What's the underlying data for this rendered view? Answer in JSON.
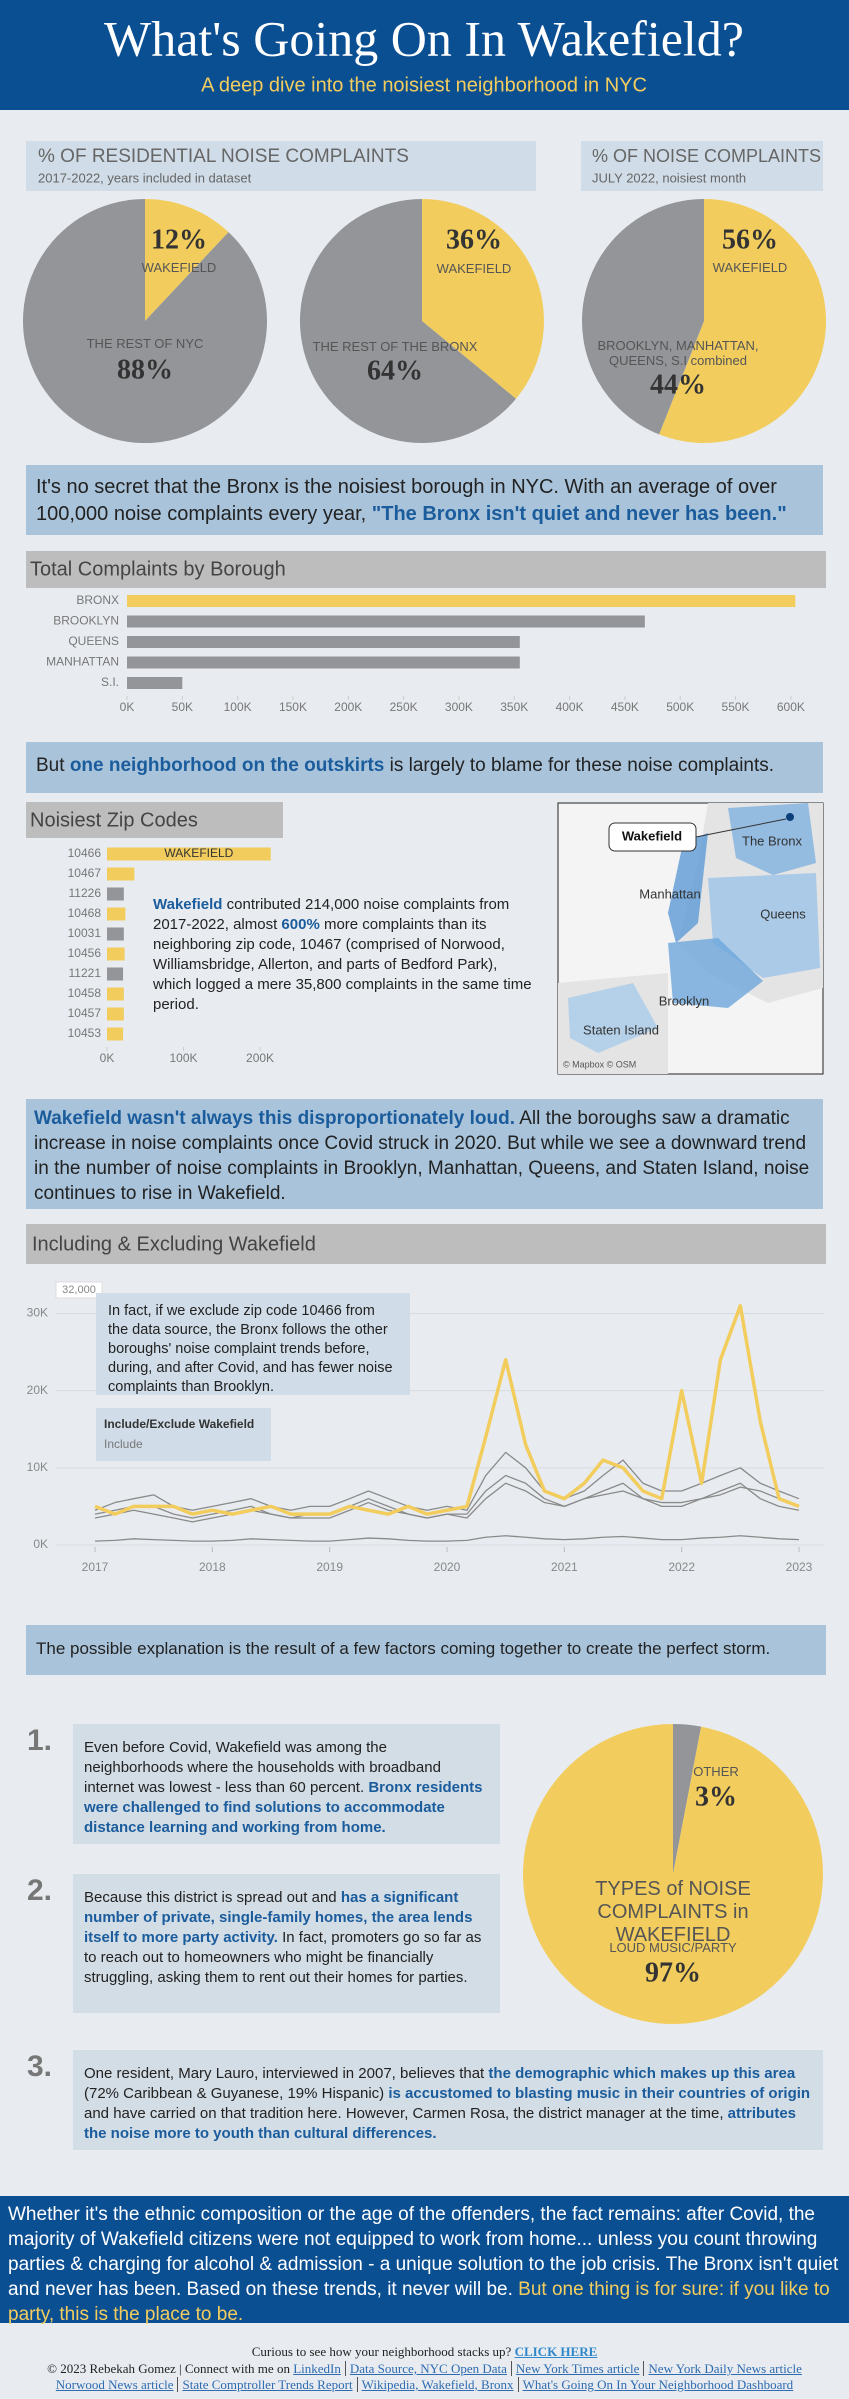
{
  "header": {
    "title": "What's Going On In Wakefield?",
    "subtitle": "A deep dive into the noisiest neighborhood in NYC"
  },
  "pie_headers": [
    {
      "title": "% OF RESIDENTIAL NOISE COMPLAINTS",
      "note": "2017-2022, years included in dataset"
    },
    {
      "title": "% OF NOISE COMPLAINTS",
      "note": "JULY 2022, noisiest month"
    }
  ],
  "intro": [
    "It's no secret that the Bronx is the noisiest borough in NYC. With an average of over 100,000 noise complaints every year, ",
    "\"The Bronx isn't quiet and never has been.\""
  ],
  "outskirts": [
    "But ",
    "one neighborhood on the outskirts",
    " is largely to blame for these noise complaints."
  ],
  "zip_text": [
    "Wakefield",
    " contributed 214,000 noise complaints from 2017-2022, almost ",
    "600%",
    " more complaints than its neighboring zip code, 10467 (comprised of Norwood, Williamsbridge, Allerton, and parts of Bedford Park), which logged a mere 35,800 complaints in the same time period."
  ],
  "map": {
    "labels": [
      "Wakefield",
      "The Bronx",
      "Manhattan",
      "Queens",
      "Brooklyn",
      "Staten Island"
    ],
    "credit": "© Mapbox © OSM"
  },
  "covid": [
    "Wakefield wasn't always this disproportionately loud.",
    " All the boroughs saw a dramatic increase in noise complaints once Covid struck in 2020. But while we see a downward trend in the number of noise complaints in Brooklyn, Manhattan, Queens, and Staten Island, noise continues to rise in Wakefield."
  ],
  "storm": "The possible explanation is the result of a few factors coming together to create the perfect storm.",
  "factors": [
    {
      "number": "1.",
      "text": [
        "Even before Covid, Wakefield was among the neighborhoods where the households with broadband internet was lowest - less than 60 percent. ",
        "Bronx residents were challenged to find solutions to accommodate distance learning and working from home."
      ]
    },
    {
      "number": "2.",
      "text": [
        "Because this district is spread out and ",
        "has a significant number of private, single-family homes, the area lends itself to more party activity.",
        " In fact, promoters go so far as to reach out to homeowners who might be financially struggling, asking them to rent out their homes for parties."
      ]
    },
    {
      "number": "3.",
      "text": [
        "One resident, Mary Lauro, interviewed in 2007, believes that ",
        "the demographic which makes up this area",
        " (72% Caribbean & Guyanese, 19% Hispanic) ",
        "is accustomed to blasting music in their countries of origin",
        " and have carried on that tradition here. However, Carmen Rosa, the district manager at the time, ",
        "attributes the noise more to youth than cultural differences."
      ]
    }
  ],
  "conclusion": [
    "Whether it's the ethnic composition or the age of the offenders, the fact remains: after Covid, the majority of Wakefield citizens were not equipped to work from home... unless you count throwing parties & charging for alcohol & admission - a unique solution to the job crisis. The Bronx isn't quiet and never has been. Based on these trends, it never will be. ",
    "But one thing is for sure: if you like to party, this is the place to be."
  ],
  "footer": {
    "prompt": "Curious to see how your neighborhood stacks up?",
    "cta": "CLICK HERE",
    "copyright": "© 2023 Rebekah Gomez | Connect with me on",
    "links": [
      "LinkedIn",
      "Data Source, NYC Open Data",
      "New York Times article",
      "New York Daily News article",
      "Norwood News article",
      "State Comptroller Trends Report",
      "Wikipedia, Wakefield, Bronx",
      "What's Going On In Your Neighborhood Dashboard"
    ]
  },
  "chart_data": [
    {
      "type": "pie",
      "categories": [
        "WAKEFIELD",
        "THE REST OF NYC"
      ],
      "values": [
        12,
        88
      ],
      "value_labels": [
        "12%",
        "88%"
      ],
      "colors": [
        "#f2cd5e",
        "#939598"
      ]
    },
    {
      "type": "pie",
      "categories": [
        "WAKEFIELD",
        "THE REST OF THE BRONX"
      ],
      "values": [
        36,
        64
      ],
      "value_labels": [
        "36%",
        "64%"
      ],
      "colors": [
        "#f2cd5e",
        "#939598"
      ]
    },
    {
      "type": "pie",
      "categories": [
        "WAKEFIELD",
        "BROOKLYN, MANHATTAN, QUEENS, S.I combined"
      ],
      "values": [
        56,
        44
      ],
      "value_labels": [
        "56%",
        "44%"
      ],
      "colors": [
        "#f2cd5e",
        "#939598"
      ]
    },
    {
      "type": "hbar",
      "title": "Total Complaints by Borough",
      "categories": [
        "BRONX",
        "BROOKLYN",
        "QUEENS",
        "MANHATTAN",
        "S.I."
      ],
      "values": [
        604000,
        468000,
        355000,
        355000,
        50000
      ],
      "colors": [
        "#f2cd5e",
        "#939598",
        "#939598",
        "#939598",
        "#939598"
      ],
      "xlim": [
        0,
        620000
      ],
      "xticks": [
        {
          "value": 0,
          "label": "0K"
        },
        {
          "value": 50000,
          "label": "50K"
        },
        {
          "value": 100000,
          "label": "100K"
        },
        {
          "value": 150000,
          "label": "150K"
        },
        {
          "value": 200000,
          "label": "200K"
        },
        {
          "value": 250000,
          "label": "250K"
        },
        {
          "value": 300000,
          "label": "300K"
        },
        {
          "value": 350000,
          "label": "350K"
        },
        {
          "value": 400000,
          "label": "400K"
        },
        {
          "value": 450000,
          "label": "450K"
        },
        {
          "value": 500000,
          "label": "500K"
        },
        {
          "value": 550000,
          "label": "550K"
        },
        {
          "value": 600000,
          "label": "600K"
        }
      ]
    },
    {
      "type": "hbar",
      "title": "Noisiest Zip Codes",
      "categories": [
        "10466",
        "10467",
        "11226",
        "10468",
        "10031",
        "10456",
        "11221",
        "10458",
        "10457",
        "10453"
      ],
      "values": [
        214000,
        35800,
        22000,
        24000,
        22000,
        23000,
        21000,
        22000,
        22000,
        21000
      ],
      "colors": [
        "#f2cd5e",
        "#f2cd5e",
        "#939598",
        "#f2cd5e",
        "#939598",
        "#f2cd5e",
        "#939598",
        "#f2cd5e",
        "#f2cd5e",
        "#f2cd5e"
      ],
      "bar_label": "WAKEFIELD",
      "xlim": [
        0,
        230000
      ],
      "xticks": [
        {
          "value": 0,
          "label": "0K"
        },
        {
          "value": 100000,
          "label": "100K"
        },
        {
          "value": 200000,
          "label": "200K"
        }
      ]
    },
    {
      "type": "line",
      "title": "Including & Excluding Wakefield",
      "x": [
        2017,
        2017.17,
        2017.33,
        2017.5,
        2017.67,
        2017.83,
        2018,
        2018.17,
        2018.33,
        2018.5,
        2018.67,
        2018.83,
        2019,
        2019.17,
        2019.33,
        2019.5,
        2019.67,
        2019.83,
        2020,
        2020.17,
        2020.33,
        2020.5,
        2020.67,
        2020.83,
        2021,
        2021.17,
        2021.33,
        2021.5,
        2021.67,
        2021.83,
        2022,
        2022.17,
        2022.33,
        2022.5,
        2022.67,
        2022.83,
        2023
      ],
      "series": [
        {
          "color": "#8a8a8a",
          "values": [
            4500,
            5500,
            6000,
            6500,
            5000,
            4500,
            5000,
            5500,
            6000,
            5000,
            4500,
            5000,
            5000,
            6000,
            7000,
            6000,
            5000,
            4500,
            5000,
            4500,
            9000,
            12000,
            10000,
            7000,
            6000,
            7000,
            9000,
            11000,
            8000,
            7000,
            7000,
            8000,
            9000,
            10000,
            8000,
            7000,
            6000
          ]
        },
        {
          "color": "#8a8a8a",
          "values": [
            4000,
            4500,
            5000,
            5000,
            4000,
            3500,
            4000,
            4500,
            5000,
            4000,
            3500,
            4000,
            4000,
            5000,
            6000,
            5000,
            4000,
            3500,
            4000,
            4000,
            7000,
            9000,
            8000,
            6000,
            5000,
            6000,
            7000,
            8000,
            6000,
            5000,
            5000,
            6000,
            7000,
            8000,
            6000,
            5000,
            4500
          ]
        },
        {
          "color": "#8a8a8a",
          "values": [
            3500,
            4000,
            4500,
            4000,
            3500,
            3000,
            3500,
            4000,
            4500,
            4000,
            3500,
            3500,
            3500,
            4500,
            5500,
            4500,
            4000,
            3500,
            4000,
            3500,
            6000,
            8000,
            7000,
            5500,
            5000,
            6000,
            6500,
            7000,
            6000,
            5500,
            5500,
            6000,
            6500,
            7500,
            7000,
            6000,
            5000
          ]
        },
        {
          "color": "#8a8a8a",
          "values": [
            500,
            600,
            800,
            700,
            600,
            500,
            500,
            600,
            800,
            700,
            600,
            500,
            500,
            700,
            900,
            800,
            600,
            500,
            500,
            600,
            1000,
            1200,
            1000,
            800,
            700,
            800,
            1000,
            1100,
            900,
            700,
            700,
            900,
            1000,
            1200,
            1000,
            800,
            700
          ]
        },
        {
          "color": "#f2cd5e",
          "values": [
            5000,
            4000,
            5000,
            5000,
            5000,
            4000,
            4500,
            4000,
            4500,
            5000,
            4000,
            4000,
            4000,
            5000,
            4500,
            4000,
            5000,
            4000,
            4500,
            5000,
            14000,
            24000,
            13000,
            7000,
            6000,
            8000,
            11000,
            10000,
            7000,
            6000,
            20000,
            8000,
            24000,
            31000,
            16000,
            6000,
            5000
          ]
        }
      ],
      "xlim": [
        2017,
        2023
      ],
      "xticks": [
        2017,
        2018,
        2019,
        2020,
        2021,
        2022,
        2023
      ],
      "ylim": [
        0,
        32000
      ],
      "yticks": [
        {
          "value": 0,
          "label": "0K"
        },
        {
          "value": 10000,
          "label": "10K"
        },
        {
          "value": 20000,
          "label": "20K"
        },
        {
          "value": 30000,
          "label": "30K"
        }
      ],
      "grid": true,
      "annotations": [
        "32,000",
        "In fact, if we exclude zip code 10466 from the data source, the Bronx follows the other boroughs' noise complaint trends before, during, and after Covid, and has fewer noise complaints than Brooklyn."
      ],
      "filter": {
        "title": "Include/Exclude Wakefield",
        "value": "Include"
      }
    },
    {
      "type": "pie",
      "title": "TYPES of NOISE COMPLAINTS in WAKEFIELD",
      "categories": [
        "OTHER",
        "LOUD MUSIC/PARTY"
      ],
      "values": [
        3,
        97
      ],
      "value_labels": [
        "3%",
        "97%"
      ],
      "colors": [
        "#939598",
        "#f2cd5e"
      ]
    }
  ]
}
